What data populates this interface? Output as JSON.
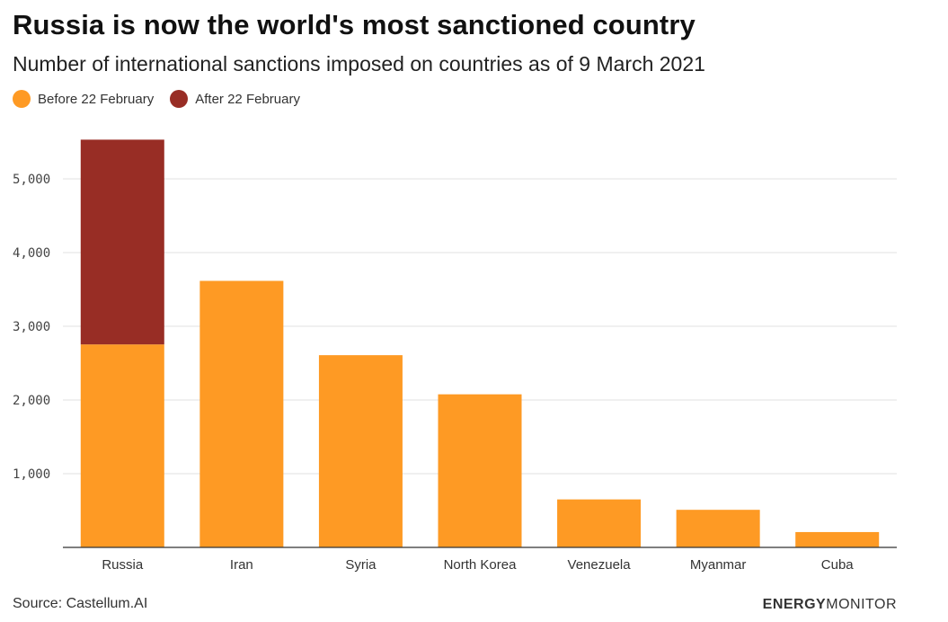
{
  "title": "Russia is now the world's most sanctioned country",
  "subtitle": "Number of international sanctions imposed on countries as of 9 March 2021",
  "legend": [
    {
      "label": "Before 22 February",
      "color": "#FE9A24"
    },
    {
      "label": "After 22 February",
      "color": "#982D25"
    }
  ],
  "source": "Source: Castellum.AI",
  "brand": {
    "part1": "ENERGY",
    "part2": "MONITOR"
  },
  "chart_data": {
    "type": "bar",
    "stacked": true,
    "categories": [
      "Russia",
      "Iran",
      "Syria",
      "North Korea",
      "Venezuela",
      "Myanmar",
      "Cuba"
    ],
    "series": [
      {
        "name": "Before 22 February",
        "color": "#FE9A24",
        "values": [
          2754,
          3616,
          2608,
          2077,
          651,
          510,
          208
        ]
      },
      {
        "name": "After 22 February",
        "color": "#982D25",
        "values": [
          2778,
          0,
          0,
          0,
          0,
          0,
          0
        ]
      }
    ],
    "yticks": [
      1000,
      2000,
      3000,
      4000,
      5000
    ],
    "ytick_labels": [
      "1,000",
      "2,000",
      "3,000",
      "4,000",
      "5,000"
    ],
    "ylim": [
      0,
      5600
    ],
    "grid": true,
    "xlabel": "",
    "ylabel": ""
  }
}
